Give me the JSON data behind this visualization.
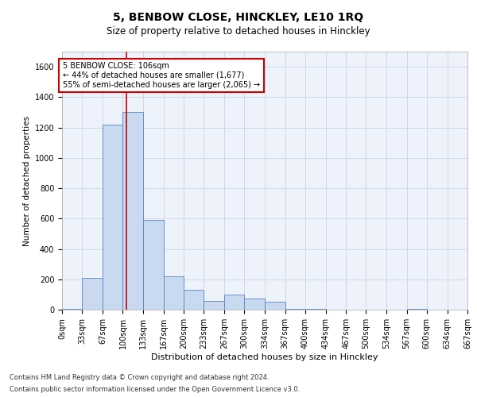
{
  "title": "5, BENBOW CLOSE, HINCKLEY, LE10 1RQ",
  "subtitle": "Size of property relative to detached houses in Hinckley",
  "xlabel": "Distribution of detached houses by size in Hinckley",
  "ylabel": "Number of detached properties",
  "footer_line1": "Contains HM Land Registry data © Crown copyright and database right 2024.",
  "footer_line2": "Contains public sector information licensed under the Open Government Licence v3.0.",
  "annotation_line1": "5 BENBOW CLOSE: 106sqm",
  "annotation_line2": "← 44% of detached houses are smaller (1,677)",
  "annotation_line3": "55% of semi-detached houses are larger (2,065) →",
  "bin_edges": [
    0,
    33,
    67,
    100,
    133,
    167,
    200,
    233,
    267,
    300,
    334,
    367,
    400,
    434,
    467,
    500,
    534,
    567,
    600,
    634,
    667
  ],
  "bar_heights": [
    5,
    210,
    1220,
    1300,
    590,
    220,
    130,
    55,
    100,
    75,
    50,
    5,
    5,
    0,
    0,
    0,
    0,
    5,
    0,
    0
  ],
  "bar_facecolor": "#c9d9f0",
  "bar_edgecolor": "#5585c5",
  "redline_x": 106,
  "redline_color": "#cc0000",
  "annotation_box_edgecolor": "#cc0000",
  "annotation_box_facecolor": "white",
  "ylim": [
    0,
    1700
  ],
  "yticks": [
    0,
    200,
    400,
    600,
    800,
    1000,
    1200,
    1400,
    1600
  ],
  "grid_color": "#d0d8e8",
  "background_color": "#eef2fa",
  "title_fontsize": 10,
  "subtitle_fontsize": 8.5,
  "ylabel_fontsize": 7.5,
  "xlabel_fontsize": 8,
  "tick_fontsize": 7,
  "annot_fontsize": 7,
  "footer_fontsize": 6
}
